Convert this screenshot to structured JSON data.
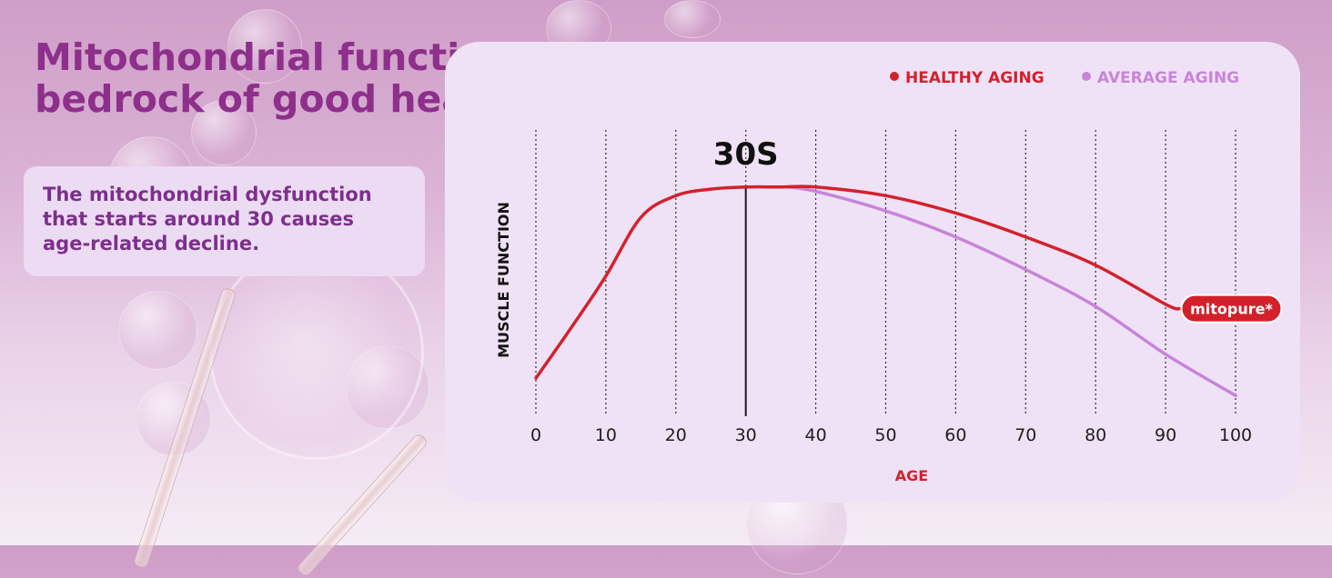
{
  "headline": {
    "line1": "Mitochondrial function is the",
    "line2": "bedrock of good health"
  },
  "info_text": {
    "line1": "The mitochondrial dysfunction",
    "line2": "that starts around 30 causes",
    "line3": "age-related decline."
  },
  "legend": {
    "healthy": "HEALTHY AGING",
    "average": "AVERAGE AGING"
  },
  "brand_badge": "mitopure*",
  "colors": {
    "healthy": "#d3212b",
    "average": "#c884d9",
    "headline": "#8e2f8b"
  },
  "chart_data": {
    "type": "line",
    "title": "",
    "xlabel": "AGE",
    "ylabel": "MUSCLE FUNCTION",
    "xlim": [
      0,
      100
    ],
    "ylim": [
      0,
      100
    ],
    "x_ticks": [
      0,
      10,
      20,
      30,
      40,
      50,
      60,
      70,
      80,
      90,
      100
    ],
    "grid": "vertical dotted lines at each tick",
    "legend_position": "top-right",
    "annotation": {
      "label": "30S",
      "x": 30
    },
    "series": [
      {
        "name": "HEALTHY AGING",
        "x": [
          0,
          5,
          10,
          15,
          20,
          25,
          30,
          35,
          40,
          50,
          60,
          70,
          80,
          90,
          92
        ],
        "y": [
          10,
          33,
          57,
          84,
          94,
          97,
          98,
          98,
          98,
          94,
          86,
          75,
          62,
          44,
          42
        ]
      },
      {
        "name": "AVERAGE AGING",
        "x": [
          36,
          40,
          50,
          60,
          70,
          80,
          90,
          100
        ],
        "y": [
          98,
          96,
          87,
          75,
          60,
          43,
          21,
          2
        ]
      }
    ]
  }
}
